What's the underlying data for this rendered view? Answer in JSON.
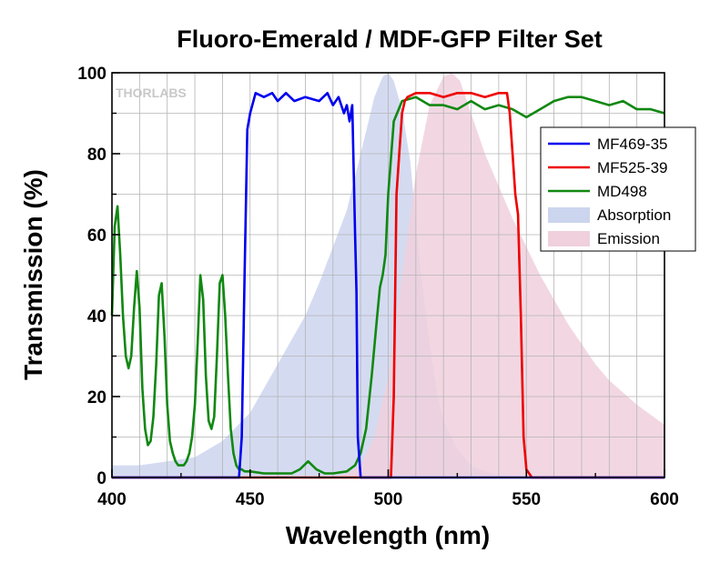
{
  "chart_data": {
    "type": "line",
    "title": "Fluoro-Emerald / MDF-GFP Filter Set",
    "xlabel": "Wavelength (nm)",
    "ylabel": "Transmission (%)",
    "xlim": [
      400,
      600
    ],
    "ylim": [
      0,
      100
    ],
    "xticks": [
      400,
      450,
      500,
      550,
      600
    ],
    "yticks": [
      0,
      20,
      40,
      60,
      80,
      100
    ],
    "grid": true,
    "legend_position": "right",
    "watermark": "THORLABS",
    "series": [
      {
        "name": "MF469-35",
        "color": "#0000ee",
        "style": "line",
        "x": [
          400,
          446,
          447,
          448,
          449,
          450,
          452,
          455,
          458,
          460,
          463,
          466,
          470,
          475,
          478,
          480,
          482,
          484,
          485,
          486,
          487,
          488,
          488.5,
          489,
          490,
          600
        ],
        "y": [
          0,
          0,
          10,
          50,
          86,
          90,
          95,
          94,
          95,
          93,
          95,
          93,
          94,
          93,
          95,
          92,
          94,
          90,
          92,
          88,
          92,
          60,
          46,
          10,
          0,
          0
        ]
      },
      {
        "name": "MF525-39",
        "color": "#ee0000",
        "style": "line",
        "x": [
          400,
          501,
          502,
          503,
          504,
          505,
          506,
          507,
          510,
          515,
          520,
          525,
          530,
          535,
          540,
          543,
          544,
          545,
          546,
          547,
          548,
          549,
          550,
          552,
          600
        ],
        "y": [
          0,
          0,
          20,
          70,
          80,
          90,
          93,
          94,
          95,
          95,
          94,
          95,
          95,
          94,
          95,
          95,
          90,
          80,
          70,
          65,
          40,
          10,
          2,
          0,
          0
        ]
      },
      {
        "name": "MD498",
        "color": "#118811",
        "style": "line",
        "x": [
          400,
          401,
          402,
          403,
          404,
          405,
          406,
          407,
          408,
          409,
          410,
          411,
          412,
          413,
          414,
          415,
          416,
          417,
          418,
          419,
          420,
          421,
          422,
          423,
          424,
          425,
          426,
          427,
          428,
          429,
          430,
          431,
          432,
          433,
          434,
          435,
          436,
          437,
          438,
          439,
          440,
          441,
          442,
          443,
          444,
          445,
          446,
          447,
          448,
          450,
          455,
          460,
          465,
          468,
          471,
          474,
          477,
          480,
          485,
          488,
          490,
          492,
          494,
          496,
          497,
          498,
          499,
          500,
          502,
          505,
          510,
          515,
          520,
          525,
          530,
          535,
          540,
          545,
          550,
          555,
          560,
          565,
          570,
          575,
          580,
          585,
          590,
          595,
          600
        ],
        "y": [
          40,
          62,
          67,
          55,
          40,
          30,
          27,
          30,
          42,
          51,
          42,
          22,
          12,
          8,
          9,
          15,
          28,
          45,
          48,
          35,
          18,
          9,
          6,
          4,
          3,
          3,
          3,
          4,
          6,
          10,
          18,
          33,
          50,
          44,
          25,
          14,
          12,
          15,
          30,
          48,
          50,
          40,
          25,
          12,
          6,
          3,
          2,
          2,
          1.5,
          1.5,
          1,
          1,
          1,
          2,
          4,
          2,
          1,
          1,
          1.5,
          3,
          6,
          12,
          25,
          40,
          47,
          50,
          55,
          70,
          88,
          93,
          94,
          92,
          92,
          91,
          93,
          91,
          92,
          91,
          89,
          91,
          93,
          94,
          94,
          93,
          92,
          93,
          91,
          91,
          90
        ]
      },
      {
        "name": "Absorption",
        "color": "#ccd5ee",
        "style": "area",
        "x": [
          400,
          410,
          420,
          430,
          440,
          450,
          460,
          470,
          475,
          480,
          485,
          490,
          495,
          498,
          500,
          502,
          505,
          508,
          510,
          512,
          515,
          518,
          520,
          525,
          530,
          535,
          540,
          550,
          560,
          600
        ],
        "y": [
          3,
          3,
          4,
          5,
          9,
          16,
          28,
          40,
          48,
          57,
          66,
          80,
          94,
          99,
          100,
          98,
          91,
          78,
          63,
          50,
          33,
          20,
          14,
          7,
          3,
          1.5,
          0.5,
          0,
          0,
          0
        ]
      },
      {
        "name": "Emission",
        "color": "#f0d0dd",
        "style": "area",
        "x": [
          400,
          480,
          485,
          490,
          495,
          500,
          505,
          510,
          515,
          520,
          523,
          526,
          530,
          535,
          540,
          545,
          550,
          555,
          560,
          565,
          570,
          575,
          580,
          590,
          600
        ],
        "y": [
          0,
          0,
          1,
          3,
          10,
          25,
          50,
          75,
          92,
          99,
          100,
          98,
          90,
          80,
          72,
          64,
          57,
          50,
          44,
          38,
          33,
          28,
          24,
          18,
          13
        ]
      }
    ]
  }
}
